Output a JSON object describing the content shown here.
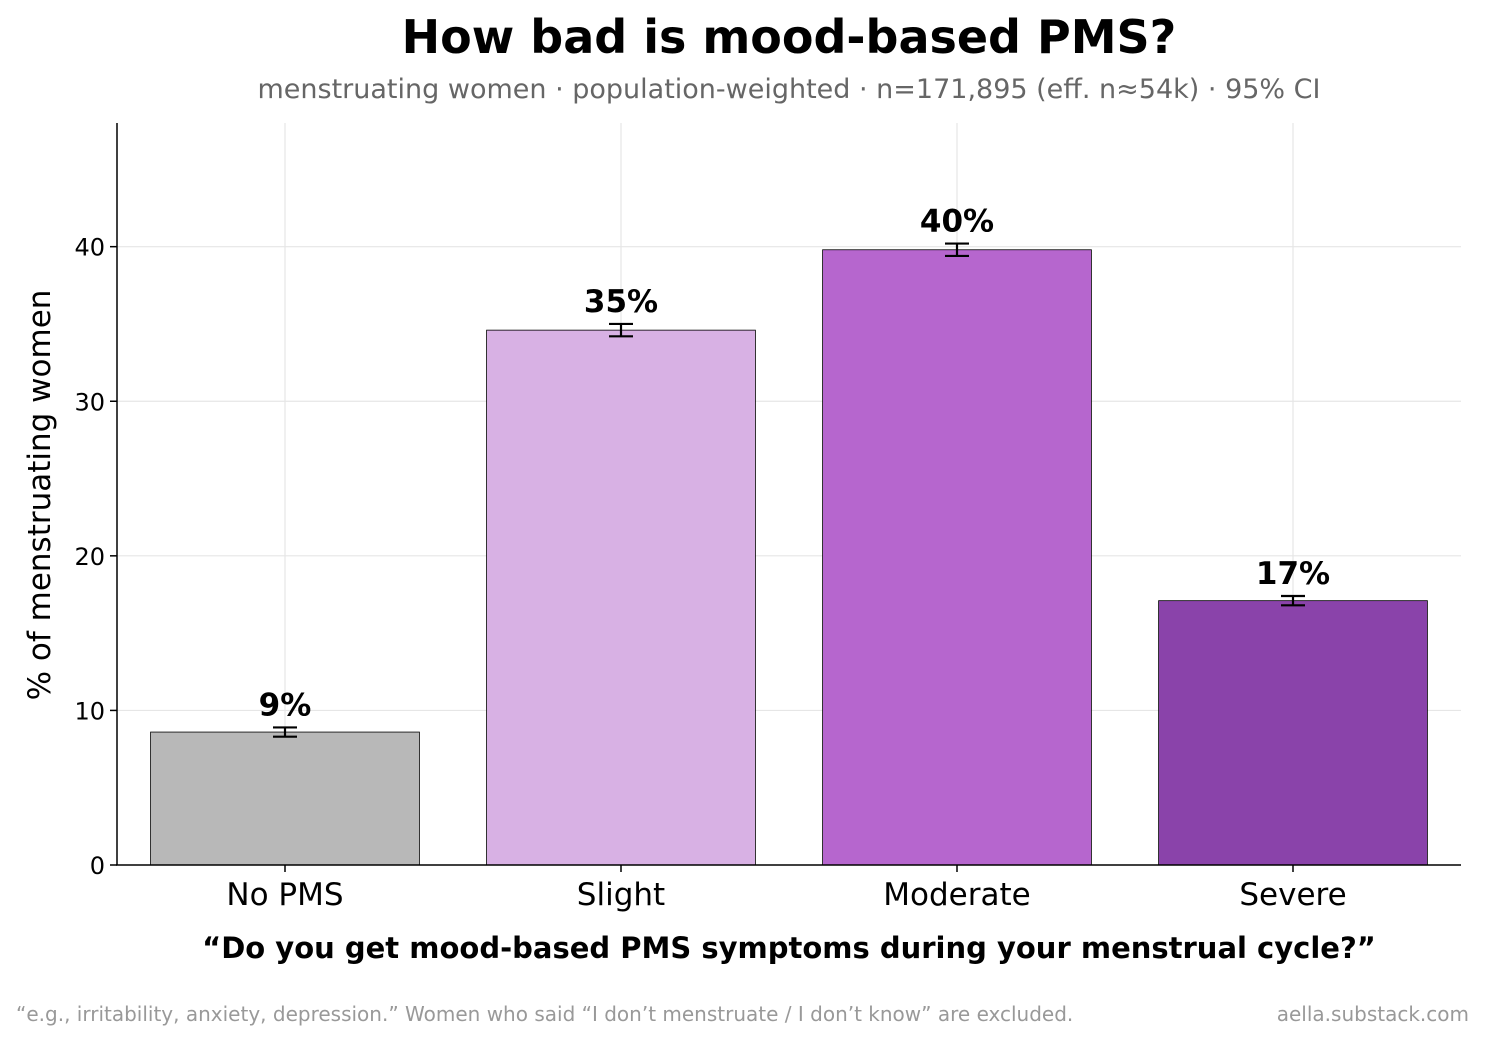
{
  "chart_data": {
    "type": "bar",
    "title": "How bad is mood-based PMS?",
    "subtitle": "menstruating women · population-weighted · n=171,895 (eff. n≈54k) · 95% CI",
    "xlabel": "“Do you get mood-based PMS symptoms during your menstrual cycle?”",
    "ylabel": "% of menstruating women",
    "categories": [
      "No PMS",
      "Slight",
      "Moderate",
      "Severe"
    ],
    "values": [
      8.6,
      34.6,
      39.8,
      17.1
    ],
    "ci_low": [
      8.3,
      34.2,
      39.4,
      16.8
    ],
    "ci_high": [
      8.9,
      35.0,
      40.2,
      17.4
    ],
    "data_labels": [
      "9%",
      "35%",
      "40%",
      "17%"
    ],
    "colors": [
      "#b8b8b8",
      "#d8b1e4",
      "#b666ce",
      "#8a43aa"
    ],
    "ylim": [
      0,
      48
    ],
    "yticks": [
      0,
      10,
      20,
      30,
      40
    ],
    "ytick_labels": [
      "0",
      "10",
      "20",
      "30",
      "40"
    ],
    "grid": true,
    "legend": "none"
  },
  "footer": {
    "note": "“e.g., irritability, anxiety, depression.” Women who said “I don’t menstruate / I don’t know” are excluded.",
    "source": "aella.substack.com"
  }
}
